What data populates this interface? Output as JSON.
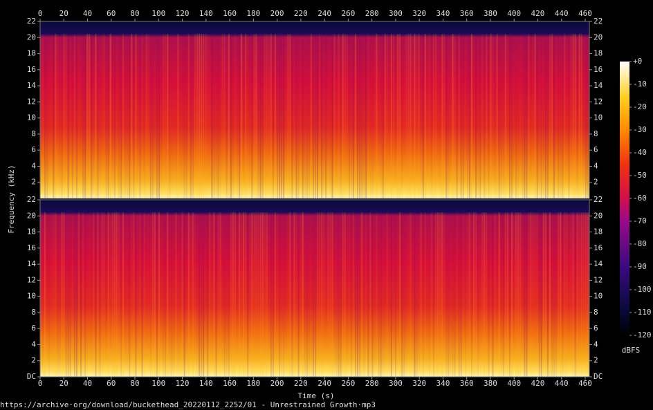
{
  "chart_data": {
    "type": "spectrogram",
    "x_label": "Time (s)",
    "y_label": "Frequency (kHz)",
    "xlim": [
      0,
      463.5
    ],
    "xticks": [
      0,
      20,
      40,
      60,
      80,
      100,
      120,
      140,
      160,
      180,
      200,
      220,
      240,
      260,
      280,
      300,
      320,
      340,
      360,
      380,
      400,
      420,
      440,
      460
    ],
    "channels": [
      {
        "ylim": [
          0,
          22
        ],
        "yticks": [
          2,
          4,
          6,
          8,
          10,
          12,
          14,
          16,
          18,
          20,
          22
        ]
      },
      {
        "ylim": [
          0,
          22
        ],
        "yticks": [
          {
            "value": 0,
            "label": "DC"
          },
          2,
          4,
          6,
          8,
          10,
          12,
          14,
          16,
          18,
          20,
          22
        ]
      }
    ],
    "colorbar": {
      "label": "dBFS",
      "lim": [
        -120,
        0
      ],
      "ticks": [
        {
          "value": 0,
          "label": "+0"
        },
        -10,
        -20,
        -30,
        -40,
        -50,
        -60,
        -70,
        -80,
        -90,
        -100,
        -110,
        -120
      ]
    },
    "source": "https://archive·org/download/buckethead_20220112_2252/01 - Unrestrained Growth·mp3"
  }
}
